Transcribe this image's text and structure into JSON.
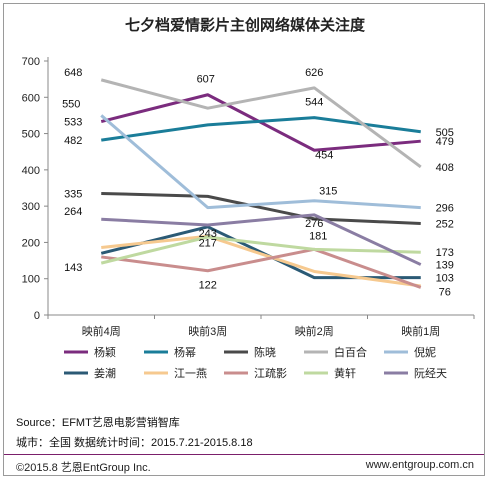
{
  "title": "七夕档爱情影片主创网络媒体关注度",
  "footer": {
    "source": "Source：EFMT艺恩电影营销智库",
    "period": "城市：全国   数据统计时间：2015.7.21-2015.8.18",
    "copyright": "©2015.8 艺恩EntGroup Inc.",
    "website": "www.entgroup.com.cn"
  },
  "chart_data": {
    "type": "line",
    "title": "七夕档爱情影片主创网络媒体关注度",
    "categories": [
      "映前4周",
      "映前3周",
      "映前2周",
      "映前1周"
    ],
    "ylim": [
      0,
      700
    ],
    "yticks": [
      0,
      100,
      200,
      300,
      400,
      500,
      600,
      700
    ],
    "grid": false,
    "legend_position": "bottom",
    "series": [
      {
        "name": "杨颖",
        "color": "#7b2c7e",
        "values": [
          533,
          607,
          454,
          479
        ],
        "labels": [
          "533",
          "607",
          "454",
          "479"
        ]
      },
      {
        "name": "杨幂",
        "color": "#1a7d99",
        "values": [
          482,
          524,
          544,
          505
        ],
        "labels": [
          "482",
          "",
          "544",
          "505"
        ]
      },
      {
        "name": "陈晓",
        "color": "#4a4a4a",
        "values": [
          335,
          327,
          265,
          252
        ],
        "labels": [
          "335",
          "",
          "",
          "252"
        ]
      },
      {
        "name": "白百合",
        "color": "#b4b4b4",
        "values": [
          648,
          570,
          626,
          408
        ],
        "labels": [
          "648",
          "",
          "626",
          "408"
        ]
      },
      {
        "name": "倪妮",
        "color": "#9fbdd9",
        "values": [
          550,
          296,
          315,
          296
        ],
        "labels": [
          "550",
          "",
          "315",
          "296"
        ]
      },
      {
        "name": "姜潮",
        "color": "#2b5a75",
        "values": [
          170,
          243,
          103,
          103
        ],
        "labels": [
          "",
          "243",
          "",
          "103"
        ]
      },
      {
        "name": "江一燕",
        "color": "#f6c98f",
        "values": [
          186,
          217,
          120,
          80
        ],
        "labels": [
          "",
          "217",
          "",
          ""
        ]
      },
      {
        "name": "江疏影",
        "color": "#c98d8d",
        "values": [
          160,
          122,
          181,
          76
        ],
        "labels": [
          "",
          "122",
          "181",
          "76"
        ]
      },
      {
        "name": "黄轩",
        "color": "#bfd9a0",
        "values": [
          143,
          215,
          181,
          173
        ],
        "labels": [
          "143",
          "",
          "",
          "173"
        ]
      },
      {
        "name": "阮经天",
        "color": "#8a7da3",
        "values": [
          264,
          248,
          276,
          139
        ],
        "labels": [
          "264",
          "",
          "276",
          "139"
        ]
      }
    ]
  }
}
